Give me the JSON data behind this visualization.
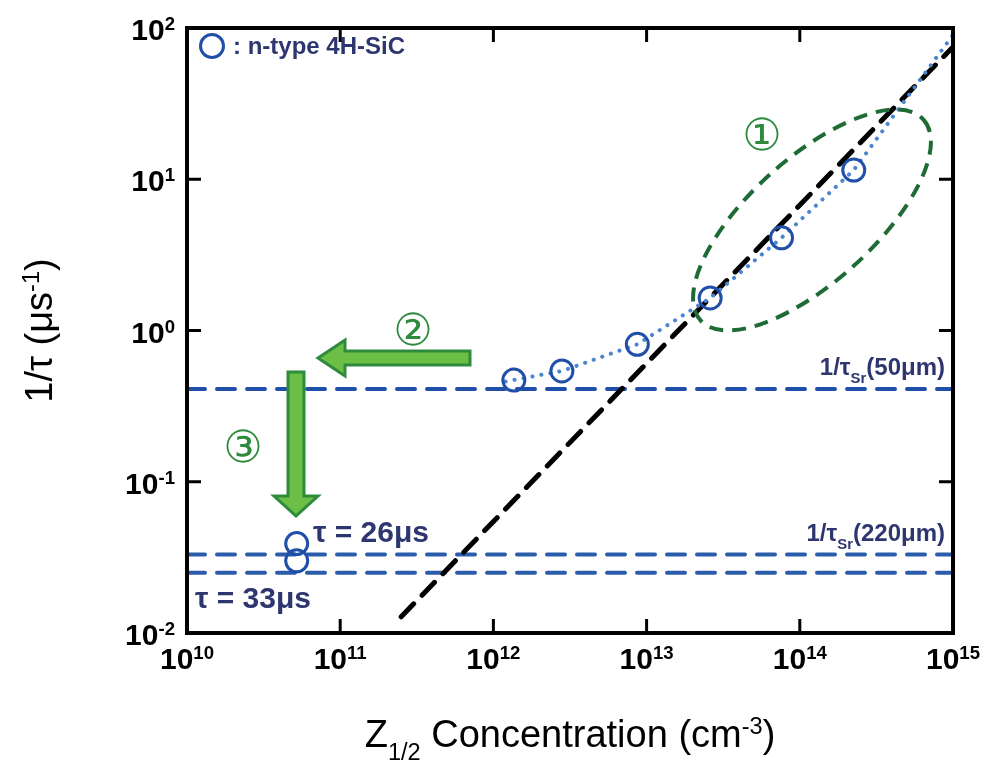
{
  "chart_data": {
    "type": "scatter",
    "xlabel": "Z$_{1/2}$ Concentration (cm$^{-3}$)",
    "ylabel": "1/τ (μs$^{-1}$)",
    "log": "xy",
    "legend": "top left",
    "grid": false,
    "xlim": [
      10000000000.0,
      1000000000000000.0
    ],
    "ylim": [
      0.01,
      100
    ],
    "xticks": [
      {
        "value": 10000000000.0,
        "label": "10$^{10}$"
      },
      {
        "value": 100000000000.0,
        "label": "10$^{11}$"
      },
      {
        "value": 1000000000000.0,
        "label": "10$^{12}$"
      },
      {
        "value": 10000000000000.0,
        "label": "10$^{13}$"
      },
      {
        "value": 100000000000000.0,
        "label": "10$^{14}$"
      },
      {
        "value": 1000000000000000.0,
        "label": "10$^{15}$"
      }
    ],
    "yticks": [
      {
        "value": 0.01,
        "label": "10$^{-2}$"
      },
      {
        "value": 0.1,
        "label": "10$^{-1}$"
      },
      {
        "value": 1,
        "label": "10$^{0}$"
      },
      {
        "value": 10,
        "label": "10$^{1}$"
      },
      {
        "value": 100,
        "label": "10$^{2}$"
      }
    ],
    "series": [
      {
        "type": "line",
        "color": "#000000",
        "line_style": "dashed",
        "marker": "none",
        "x": [
          250000000000.0,
          1000000000000000.0
        ],
        "values": [
          0.0128,
          75
        ]
      },
      {
        "type": "line",
        "color": "#4a86d0",
        "line_style": "dotted",
        "marker": "none",
        "x": [
          1200000000000.0,
          2800000000000.0,
          8700000000000.0,
          26000000000000.0,
          76000000000000.0,
          225000000000000.0,
          1000000000000000.0
        ],
        "values": [
          0.46,
          0.54,
          0.81,
          1.64,
          4.1,
          11.5,
          90
        ]
      },
      {
        "name": ": n-type 4H-SiC",
        "color": "#1f4fa8",
        "marker": "circle",
        "x": [
          1360000000000.0,
          2800000000000.0,
          8700000000000.0,
          26000000000000.0,
          76000000000000.0,
          225000000000000.0,
          52000000000.0,
          52000000000.0
        ],
        "values": [
          0.47,
          0.54,
          0.81,
          1.64,
          4.1,
          11.5,
          0.039,
          0.03
        ]
      }
    ],
    "ref_lines": [
      {
        "axis": "y",
        "value": 0.41,
        "label": "1/τ$_{Sr}$(50μm)",
        "color": "#1f4fa8",
        "line_style": "dashed"
      },
      {
        "axis": "y",
        "value": 0.033,
        "label": "1/τ$_{Sr}$(220μm)",
        "color": "#2a5caa",
        "line_style": "dashed"
      },
      {
        "axis": "y",
        "value": 0.025,
        "color": "#2a5caa",
        "line_style": "dashed"
      }
    ],
    "annotations": [
      "τ = 26μs",
      "τ = 33μs",
      "①",
      "②",
      "③"
    ]
  }
}
